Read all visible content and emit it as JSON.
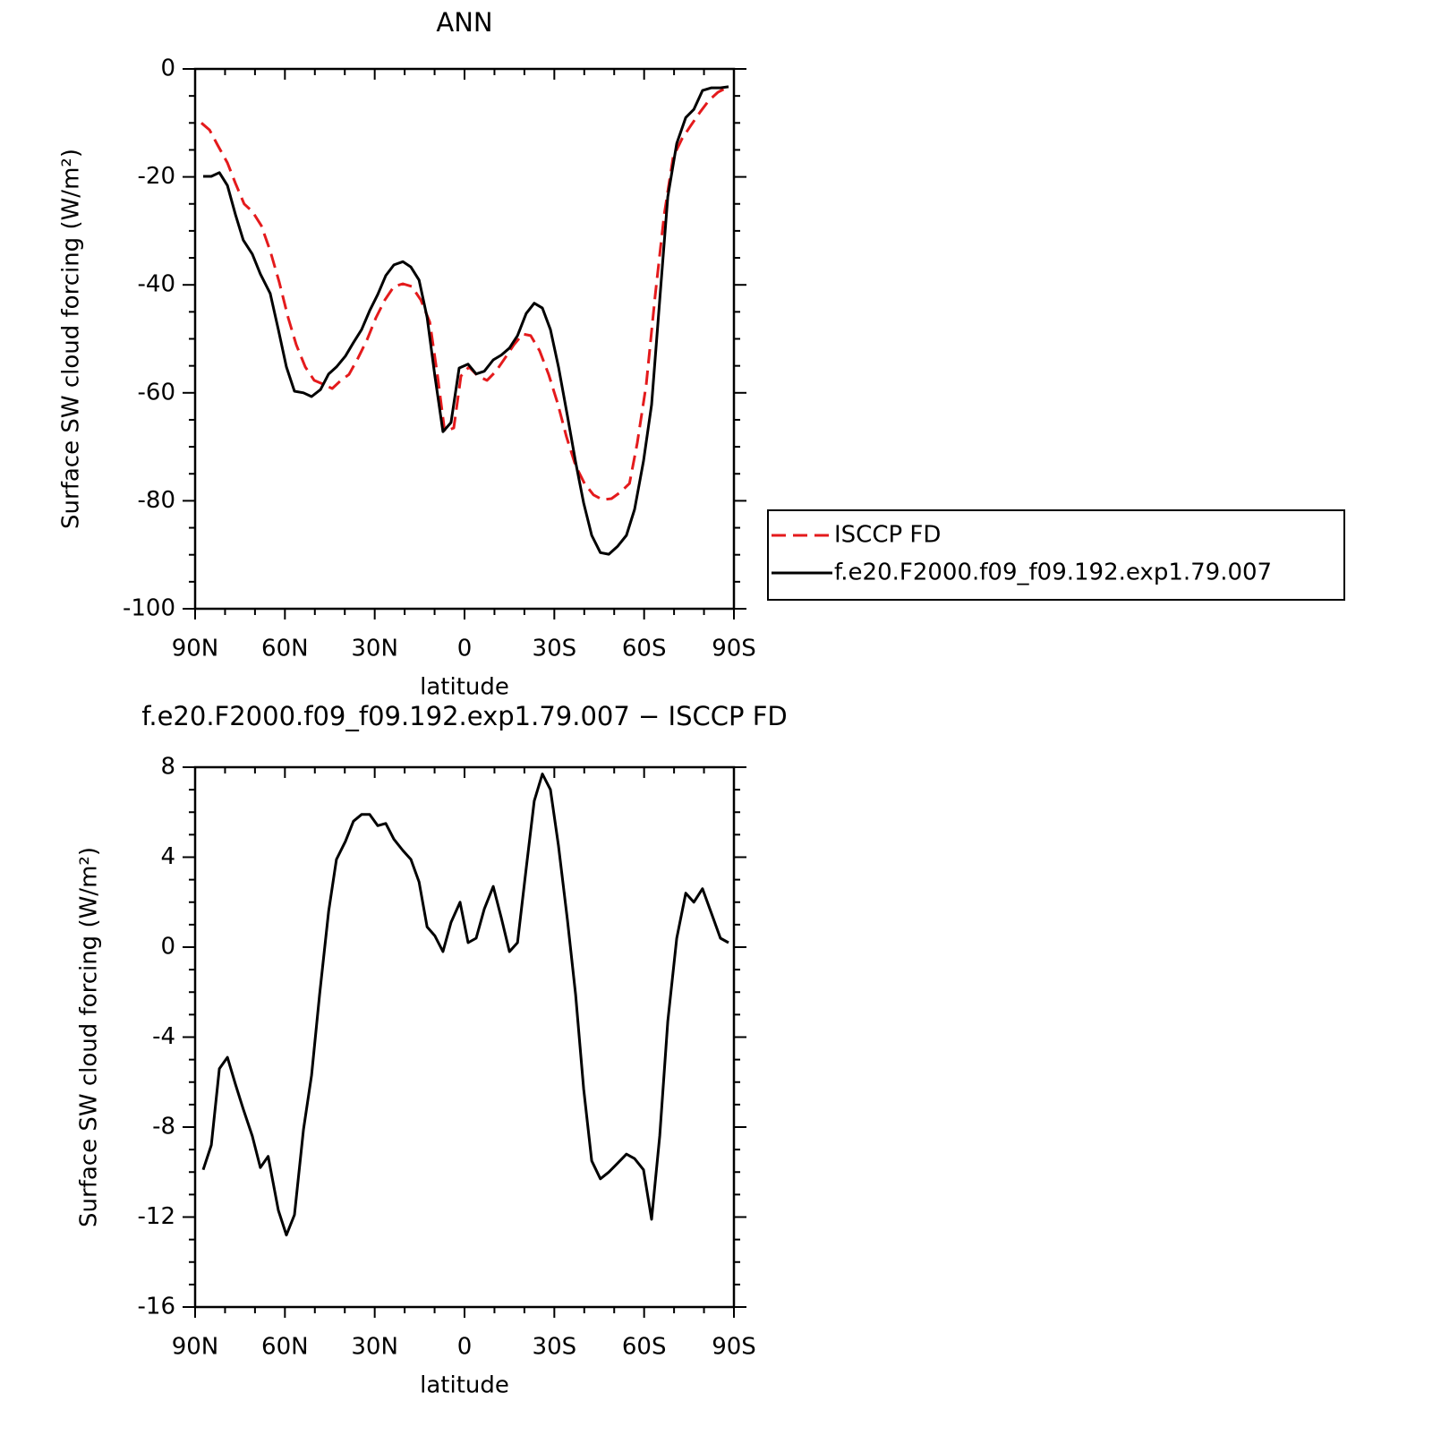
{
  "chart_data": [
    {
      "type": "line",
      "title": "ANN",
      "xlabel": "latitude",
      "ylabel": "Surface SW cloud forcing (W/m²)",
      "xlim": [
        90,
        -90
      ],
      "xticks": [
        {
          "value": 90,
          "label": "90N"
        },
        {
          "value": 60,
          "label": "60N"
        },
        {
          "value": 30,
          "label": "30N"
        },
        0,
        {
          "value": -30,
          "label": "30S"
        },
        {
          "value": -60,
          "label": "60S"
        },
        {
          "value": -90,
          "label": "90S"
        }
      ],
      "xminorticks": [
        80,
        70,
        50,
        40,
        20,
        10,
        -10,
        -20,
        -40,
        -50,
        -70,
        -80
      ],
      "ylim": [
        -100,
        0
      ],
      "yticks": [
        -100,
        -80,
        -60,
        -40,
        -20,
        0
      ],
      "yminorticks": [
        -95,
        -90,
        -85,
        -75,
        -70,
        -65,
        -55,
        -50,
        -45,
        -35,
        -30,
        -25,
        -15,
        -10,
        -5
      ],
      "legend": "right",
      "series": [
        {
          "name": "ISCCP FD",
          "color": "#e41a1c",
          "dash": true,
          "x": [
            87.9,
            85.2,
            82.5,
            79.2,
            76.5,
            73.6,
            70.9,
            67.9,
            64.9,
            61.9,
            58.9,
            56.2,
            53.2,
            50.2,
            47.2,
            44.2,
            41.3,
            38.6,
            35.6,
            32.6,
            29.6,
            26.6,
            23.6,
            20.6,
            17.6,
            14.6,
            11.6,
            9.0,
            6.6,
            3.6,
            1.2,
            -1.5,
            -4.5,
            -7.5,
            -10.5,
            -13.5,
            -16.5,
            -19.5,
            -22.1,
            -25.1,
            -28.1,
            -31.1,
            -34.1,
            -37.1,
            -40.1,
            -43.1,
            -46.1,
            -49.1,
            -52.1,
            -55.1,
            -57.7,
            -60.7,
            -63.7,
            -66.7,
            -69.7,
            -72.7,
            -75.7,
            -78.7,
            -81.7,
            -84.7,
            -88.2
          ],
          "values": [
            -10,
            -11.3,
            -14.1,
            -17.4,
            -21.2,
            -25,
            -26.4,
            -29,
            -33.7,
            -39.5,
            -46.1,
            -51.1,
            -55.2,
            -57.7,
            -58.4,
            -59.2,
            -57.7,
            -56.6,
            -53.6,
            -50.2,
            -46.1,
            -42.8,
            -40.3,
            -39.8,
            -40.3,
            -42.8,
            -46.9,
            -56.9,
            -67.2,
            -66.5,
            -56.9,
            -55.2,
            -56.9,
            -57.7,
            -56,
            -53.6,
            -51.1,
            -49.1,
            -49.4,
            -52.2,
            -56.6,
            -61.9,
            -68.2,
            -73.5,
            -76.8,
            -78.9,
            -79.8,
            -79.6,
            -78.4,
            -76.8,
            -69.3,
            -58.5,
            -42,
            -27,
            -16.3,
            -12.9,
            -10.4,
            -8,
            -5.8,
            -4.3,
            -3.3
          ]
        },
        {
          "name": "f.e20.F2000.f09_f09.192.exp1.79.007",
          "color": "#000000",
          "dash": false,
          "x": [
            87.3,
            84.6,
            81.9,
            79.2,
            76.5,
            73.9,
            70.9,
            68.2,
            64.9,
            62.2,
            59.5,
            56.8,
            53.8,
            51.1,
            48.1,
            45.4,
            42.8,
            39.8,
            37.1,
            34.4,
            31.7,
            29.0,
            26.3,
            23.6,
            20.6,
            17.9,
            15.2,
            12.5,
            9.9,
            7.2,
            4.5,
            1.8,
            -1.2,
            -3.9,
            -6.6,
            -9.6,
            -12.3,
            -15.0,
            -17.7,
            -20.6,
            -23.3,
            -26.0,
            -28.7,
            -31.4,
            -34.4,
            -37.1,
            -39.8,
            -42.5,
            -45.4,
            -48.2,
            -51.2,
            -54.1,
            -56.8,
            -59.8,
            -62.5,
            -65.2,
            -67.9,
            -70.9,
            -73.9,
            -76.6,
            -79.5,
            -82.5,
            -85.5,
            -88.2
          ],
          "values": [
            -19.9,
            -19.9,
            -19.2,
            -21.6,
            -27,
            -31.7,
            -34.3,
            -38,
            -41.6,
            -48.3,
            -55.2,
            -59.7,
            -60,
            -60.7,
            -59.4,
            -56.5,
            -55.2,
            -53.2,
            -50.7,
            -48.3,
            -44.8,
            -41.8,
            -38.3,
            -36.3,
            -35.7,
            -36.7,
            -39.1,
            -46,
            -56.9,
            -67.2,
            -65.5,
            -55.4,
            -54.7,
            -56.5,
            -56,
            -53.9,
            -53,
            -51.7,
            -49.4,
            -45.3,
            -43.4,
            -44.3,
            -48.3,
            -55.2,
            -64.3,
            -72.8,
            -80.4,
            -86.4,
            -89.6,
            -89.9,
            -88.4,
            -86.4,
            -81.6,
            -72.6,
            -62.2,
            -42.8,
            -23.7,
            -13.8,
            -9,
            -7.5,
            -4,
            -3.5,
            -3.5,
            -3.3
          ]
        }
      ]
    },
    {
      "type": "line",
      "title": "f.e20.F2000.f09_f09.192.exp1.79.007 − ISCCP FD",
      "xlabel": "latitude",
      "ylabel": "Surface SW cloud forcing (W/m²)",
      "xlim": [
        90,
        -90
      ],
      "xticks": [
        {
          "value": 90,
          "label": "90N"
        },
        {
          "value": 60,
          "label": "60N"
        },
        {
          "value": 30,
          "label": "30N"
        },
        0,
        {
          "value": -30,
          "label": "30S"
        },
        {
          "value": -60,
          "label": "60S"
        },
        {
          "value": -90,
          "label": "90S"
        }
      ],
      "xminorticks": [
        80,
        70,
        50,
        40,
        20,
        10,
        -10,
        -20,
        -40,
        -50,
        -70,
        -80
      ],
      "ylim": [
        -16,
        8
      ],
      "yticks": [
        -16,
        -12,
        -8,
        -4,
        0,
        4,
        8
      ],
      "yminorticks": [
        -15,
        -14,
        -13,
        -11,
        -10,
        -9,
        -7,
        -6,
        -5,
        -3,
        -2,
        -1,
        1,
        2,
        3,
        5,
        6,
        7
      ],
      "series": [
        {
          "color": "#000000",
          "dash": false,
          "x": [
            87.3,
            84.6,
            81.9,
            79.2,
            76.5,
            73.9,
            70.9,
            68.2,
            65.6,
            62.2,
            59.5,
            56.8,
            53.8,
            51.1,
            48.4,
            45.4,
            42.8,
            39.8,
            37.1,
            34.4,
            31.7,
            29.0,
            26.3,
            23.6,
            20.6,
            17.9,
            15.2,
            12.5,
            9.9,
            7.2,
            4.5,
            1.5,
            -1.2,
            -3.9,
            -6.6,
            -9.6,
            -12.3,
            -15.0,
            -17.7,
            -20.6,
            -23.3,
            -26.0,
            -28.7,
            -31.4,
            -34.4,
            -37.1,
            -39.8,
            -42.5,
            -45.4,
            -48.2,
            -51.2,
            -54.1,
            -56.8,
            -59.8,
            -62.5,
            -65.2,
            -67.9,
            -70.9,
            -73.9,
            -76.6,
            -79.5,
            -82.5,
            -85.5,
            -88.2
          ],
          "values": [
            -9.9,
            -8.8,
            -5.4,
            -4.9,
            -6.1,
            -7.2,
            -8.4,
            -9.8,
            -9.3,
            -11.7,
            -12.8,
            -11.9,
            -8.1,
            -5.7,
            -2.1,
            1.6,
            3.9,
            4.7,
            5.6,
            5.9,
            5.9,
            5.4,
            5.5,
            4.8,
            4.3,
            3.9,
            2.9,
            0.9,
            0.5,
            -0.2,
            1.1,
            2.0,
            0.2,
            0.4,
            1.7,
            2.7,
            1.3,
            -0.2,
            0.2,
            3.5,
            6.5,
            7.7,
            7.0,
            4.5,
            1.2,
            -2.1,
            -6.3,
            -9.5,
            -10.3,
            -10.0,
            -9.6,
            -9.2,
            -9.4,
            -9.9,
            -12.1,
            -8.4,
            -3.3,
            0.4,
            2.4,
            2.0,
            2.6,
            1.5,
            0.4,
            0.2
          ]
        }
      ]
    }
  ]
}
